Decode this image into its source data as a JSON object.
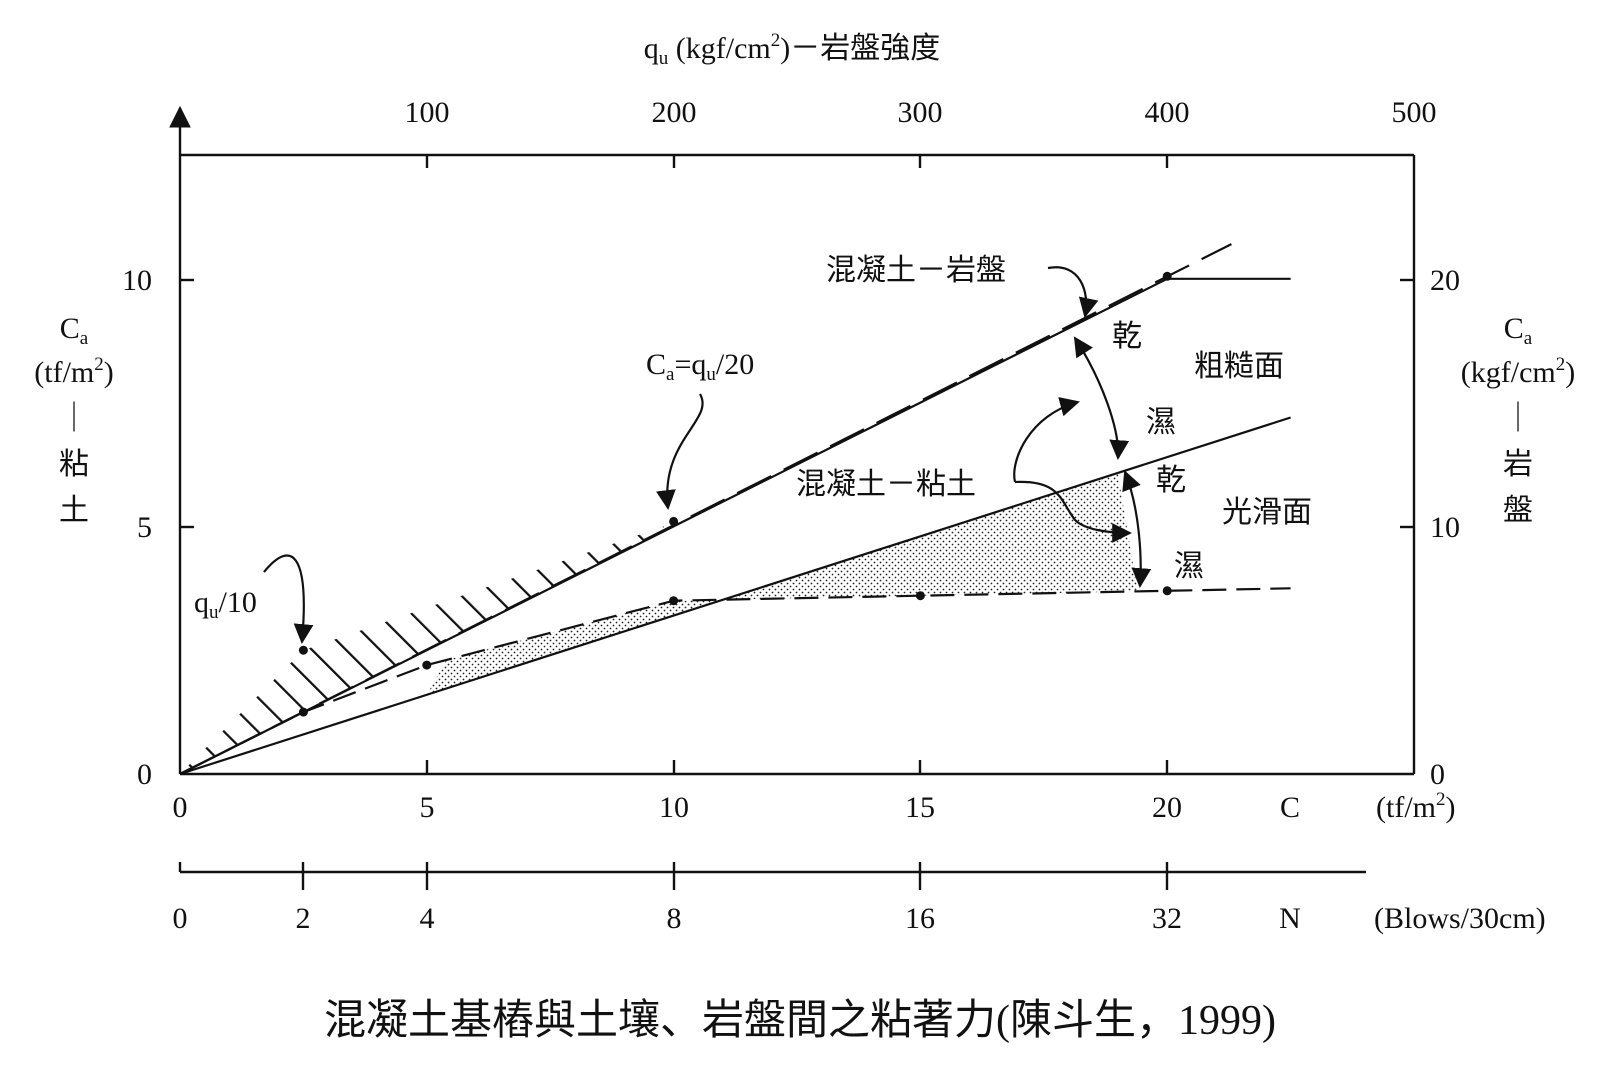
{
  "chart_data": {
    "type": "line",
    "title": "混凝土基樁與土壤、岩盤間之粘著力(陳斗生，1999)",
    "x_bottom": {
      "label_symbol": "C",
      "unit": "(tf/m²)",
      "range": [
        0,
        25
      ],
      "ticks": [
        "0",
        "5",
        "10",
        "15",
        "20"
      ]
    },
    "x_spt": {
      "label_symbol": "N",
      "unit": "(Blows/30cm)",
      "ticks": [
        "0",
        "2",
        "4",
        "8",
        "16",
        "32"
      ],
      "tick_c_values": [
        0,
        2.5,
        5,
        10,
        15,
        20
      ]
    },
    "x_top": {
      "label_prefix": "q",
      "label_sub": "u",
      "label_mid": " (kgf/cm",
      "label_sup": "2",
      "label_suffix": ")－岩盤強度",
      "range": [
        0,
        500
      ],
      "ticks": [
        "100",
        "200",
        "300",
        "400",
        "500"
      ]
    },
    "y_left": {
      "label_main": "C",
      "label_sub": "a",
      "unit_pre": "(tf/m",
      "unit_sup": "2",
      "unit_post": ")",
      "bar": "｜",
      "chars": [
        "粘",
        "土"
      ],
      "range": [
        0,
        12.5
      ],
      "ticks": [
        "0",
        "5",
        "10"
      ]
    },
    "y_right": {
      "label_main": "C",
      "label_sub": "a",
      "unit_pre": "(kgf/cm",
      "unit_sup": "2",
      "unit_post": ")",
      "bar": "｜",
      "chars": [
        "岩",
        "盤"
      ],
      "range": [
        0,
        25
      ],
      "ticks": [
        "0",
        "10",
        "20"
      ]
    },
    "series": [
      {
        "style": "solid",
        "x": [
          0,
          20,
          22.5
        ],
        "y": [
          0,
          10,
          10
        ]
      },
      {
        "style": "long-dash",
        "x": [
          0,
          21.3
        ],
        "y": [
          0,
          10.7
        ]
      },
      {
        "style": "solid",
        "x": [
          0,
          22.5
        ],
        "y": [
          0,
          7.2
        ]
      },
      {
        "style": "short-dash",
        "x": [
          0,
          2.5,
          5,
          10,
          15,
          20,
          22.5
        ],
        "y": [
          0,
          1.25,
          2.2,
          3.5,
          3.6,
          3.7,
          3.75
        ]
      },
      {
        "style": "qu/10 hatch boundary",
        "x": [
          0,
          2.5,
          9.8
        ],
        "y": [
          0,
          2.5,
          5.0
        ]
      }
    ],
    "markers": [
      {
        "x": 2.5,
        "y": 2.5
      },
      {
        "x": 2.5,
        "y": 1.25
      },
      {
        "x": 5,
        "y": 2.2
      },
      {
        "x": 10,
        "y": 5.1
      },
      {
        "x": 10,
        "y": 3.5
      },
      {
        "x": 15,
        "y": 3.6
      },
      {
        "x": 20,
        "y": 10.05
      },
      {
        "x": 20,
        "y": 3.7
      }
    ],
    "annotations": {
      "concrete_rock": "混凝土－岩盤",
      "concrete_clay": "混凝土－粘土",
      "ca_qu20_main": "C",
      "ca_qu20_sub1": "a",
      "ca_qu20_mid": "=q",
      "ca_qu20_sub2": "u",
      "ca_qu20_end": "/20",
      "qu10_main": "q",
      "qu10_sub": "u",
      "qu10_end": "/10",
      "dry": "乾",
      "wet": "濕",
      "rough": "粗糙面",
      "smooth": "光滑面"
    },
    "grid": false,
    "legend": "none"
  }
}
